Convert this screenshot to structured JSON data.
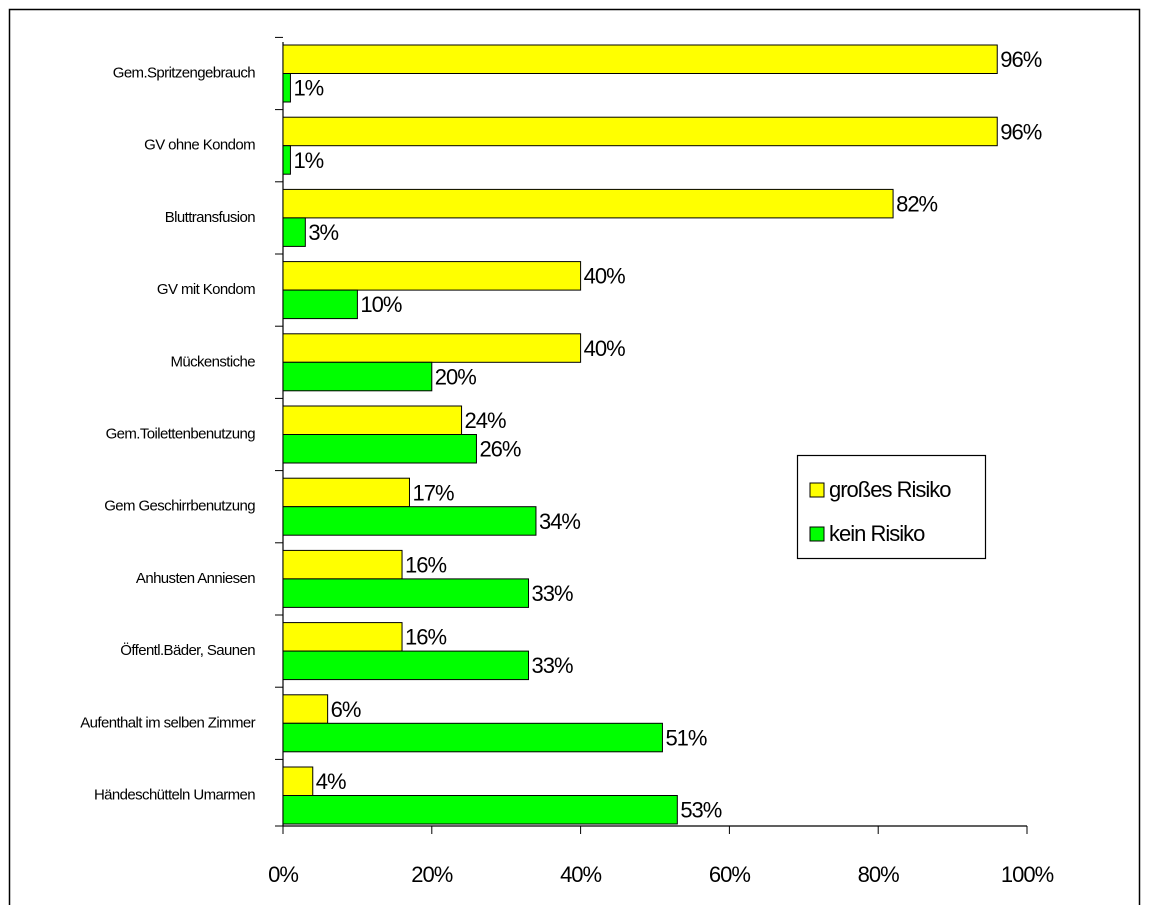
{
  "chart_data": {
    "type": "barh",
    "categories": [
      "Gem.Spritzengebrauch",
      "GV ohne Kondom",
      "Bluttransfusion",
      "GV mit Kondom",
      "Mückenstiche",
      "Gem.Toilettenbenutzung",
      "Gem Geschirrbenutzung",
      "Anhusten Anniesen",
      "Öffentl.Bäder, Saunen",
      "Aufenthalt im selben Zimmer",
      "Händeschütteln Umarmen"
    ],
    "series": [
      {
        "name": "großes Risiko",
        "color": "#ffff00",
        "values": [
          96,
          96,
          82,
          40,
          40,
          24,
          17,
          16,
          16,
          6,
          4
        ],
        "value_labels": [
          "96%",
          "96%",
          "82%",
          "40%",
          "40%",
          "24%",
          "17%",
          "16%",
          "16%",
          "6%",
          "4%"
        ]
      },
      {
        "name": "kein Risiko",
        "color": "#00ff00",
        "values": [
          1,
          1,
          3,
          10,
          20,
          26,
          34,
          33,
          33,
          51,
          53
        ],
        "value_labels": [
          "1%",
          "1%",
          "3%",
          "10%",
          "20%",
          "26%",
          "34%",
          "33%",
          "33%",
          "51%",
          "53%"
        ]
      }
    ],
    "xlim": [
      0,
      100
    ],
    "xticks": [
      {
        "value": 0,
        "label": "0%"
      },
      {
        "value": 20,
        "label": "20%"
      },
      {
        "value": 40,
        "label": "40%"
      },
      {
        "value": 60,
        "label": "60%"
      },
      {
        "value": 80,
        "label": "80%"
      },
      {
        "value": 100,
        "label": "100%"
      }
    ],
    "legend": "right"
  }
}
